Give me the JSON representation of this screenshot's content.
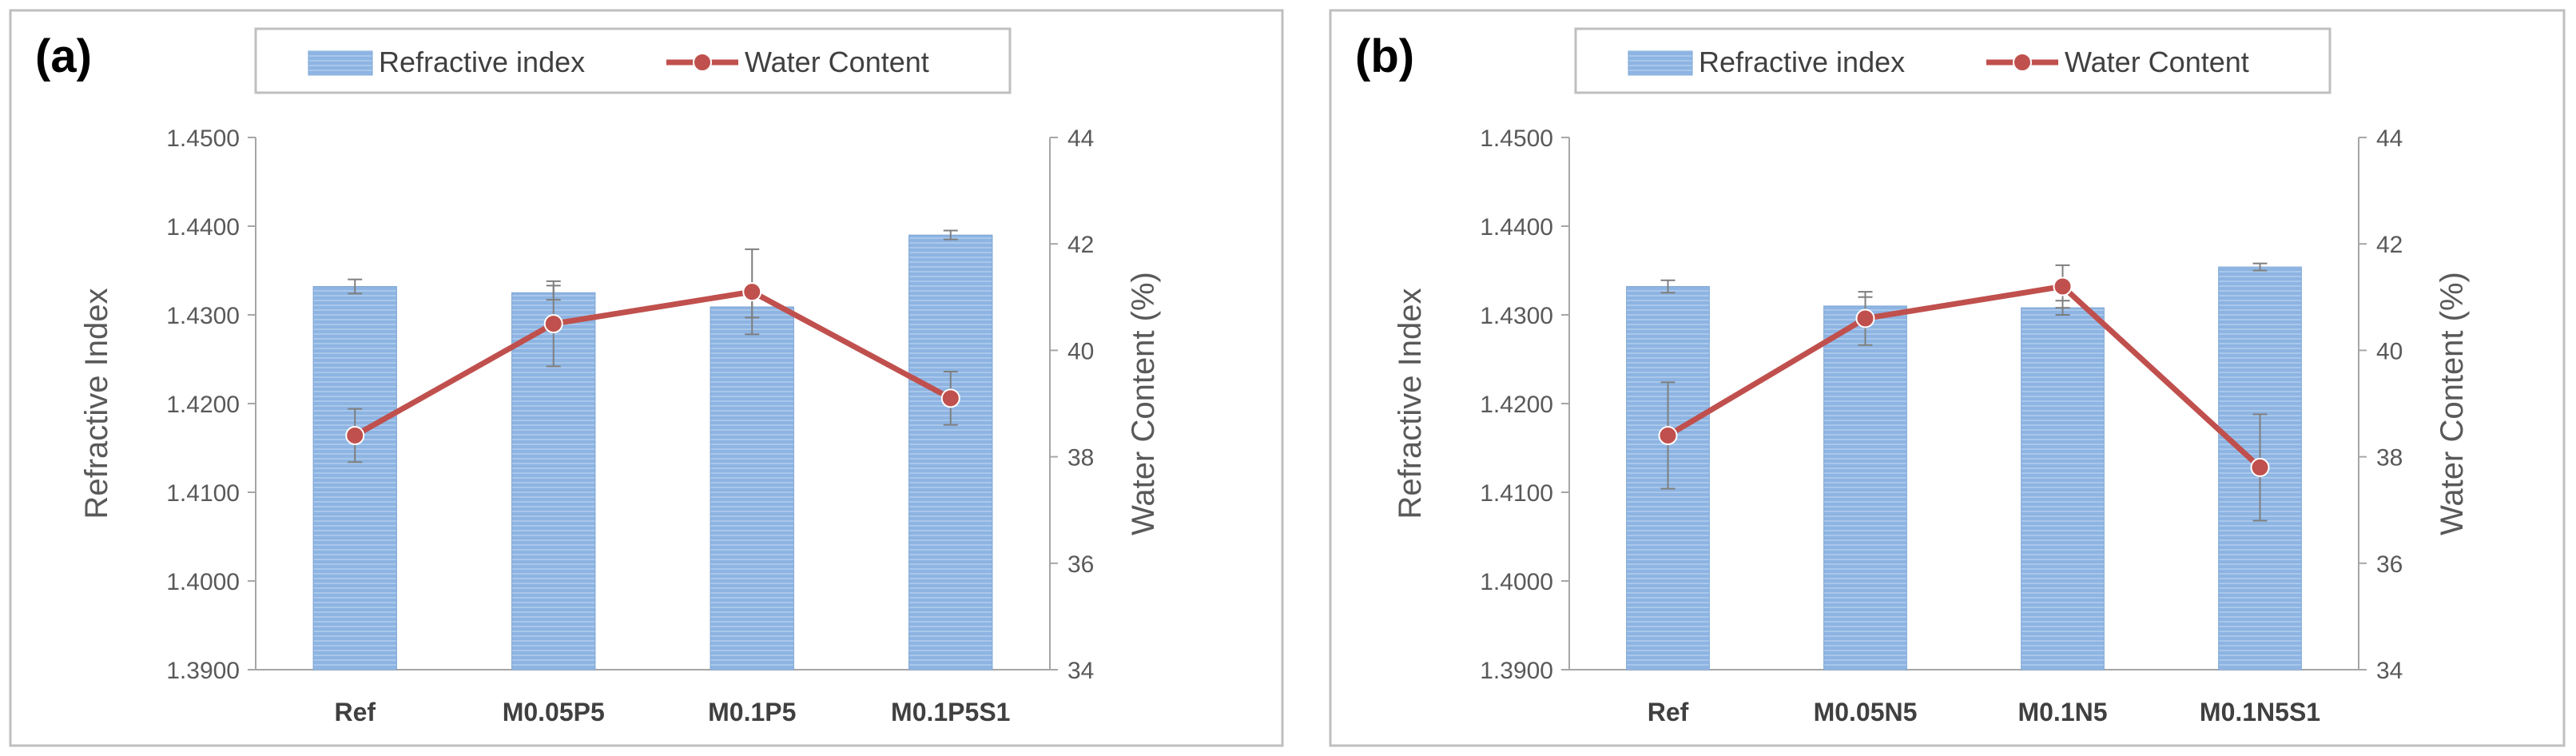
{
  "chart_data": [
    {
      "type": "bar+line",
      "panel_label": "(a)",
      "categories": [
        "Ref",
        "M0.05P5",
        "M0.1P5",
        "M0.1P5S1"
      ],
      "series": [
        {
          "name": "Refractive index",
          "kind": "bar",
          "axis": "left",
          "values": [
            1.4332,
            1.4325,
            1.4309,
            1.439
          ],
          "errors": [
            0.0008,
            0.0008,
            0.0012,
            0.0005
          ]
        },
        {
          "name": "Water Content",
          "kind": "line",
          "axis": "right",
          "values": [
            38.4,
            40.5,
            41.1,
            39.1
          ],
          "errors": [
            0.5,
            0.8,
            0.8,
            0.5
          ]
        }
      ],
      "ylabel_left": "Refractive Index",
      "ylabel_right": "Water Content (%)",
      "ylim_left": [
        1.39,
        1.45
      ],
      "ylim_right": [
        34,
        44
      ],
      "yticks_left": [
        "1.3900",
        "1.4000",
        "1.4100",
        "1.4200",
        "1.4300",
        "1.4400",
        "1.4500"
      ],
      "yticks_right": [
        "34",
        "36",
        "38",
        "40",
        "42",
        "44"
      ],
      "legend": [
        "Refractive index",
        "Water Content"
      ],
      "legend_position": "top"
    },
    {
      "type": "bar+line",
      "panel_label": "(b)",
      "categories": [
        "Ref",
        "M0.05N5",
        "M0.1N5",
        "M0.1N5S1"
      ],
      "series": [
        {
          "name": "Refractive index",
          "kind": "bar",
          "axis": "left",
          "values": [
            1.4332,
            1.431,
            1.4308,
            1.4354
          ],
          "errors": [
            0.0007,
            0.001,
            0.0008,
            0.0004
          ]
        },
        {
          "name": "Water Content",
          "kind": "line",
          "axis": "right",
          "values": [
            38.4,
            40.6,
            41.2,
            37.8
          ],
          "errors": [
            1.0,
            0.5,
            0.4,
            1.0
          ]
        }
      ],
      "ylabel_left": "Refractive Index",
      "ylabel_right": "Water Content (%)",
      "ylim_left": [
        1.39,
        1.45
      ],
      "ylim_right": [
        34,
        44
      ],
      "yticks_left": [
        "1.3900",
        "1.4000",
        "1.4100",
        "1.4200",
        "1.4300",
        "1.4400",
        "1.4500"
      ],
      "yticks_right": [
        "34",
        "36",
        "38",
        "40",
        "42",
        "44"
      ],
      "legend": [
        "Refractive index",
        "Water Content"
      ],
      "legend_position": "top"
    }
  ],
  "colors": {
    "bar_fill": "#8DB4E2",
    "bar_stripe": "#A9C7EA",
    "line": "#C0504D",
    "marker_fill": "#C0504D",
    "error_bar": "#7F7F7F",
    "axis": "#A6A6A6",
    "panel_border": "#BFBFBF"
  }
}
